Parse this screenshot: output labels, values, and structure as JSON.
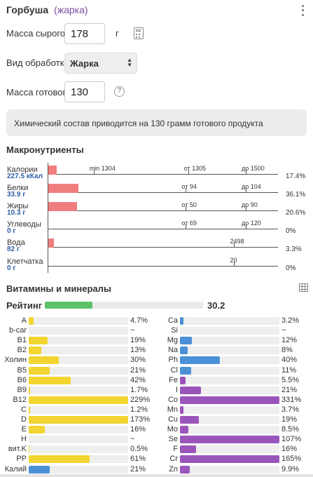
{
  "header": {
    "title": "Горбуша",
    "subtitle": "(жарка)"
  },
  "form": {
    "raw_mass_label": "Масса сырого",
    "raw_mass_value": "178",
    "raw_mass_unit": "г",
    "processing_label": "Вид обработки",
    "processing_value": "Жарка",
    "cooked_mass_label": "Масса готового",
    "cooked_mass_value": "130",
    "help_glyph": "?"
  },
  "info": {
    "text": "Химический состав приводится на 130 грамм готового продукта"
  },
  "macro": {
    "title": "Макронутриенты",
    "rows": [
      {
        "name": "Калории",
        "value": "227.5 кКал",
        "pct": "17.4%",
        "fill_pct": 3.5,
        "markers": [
          {
            "label": "min 1304",
            "pct": 20
          },
          {
            "label": "от 1305",
            "pct": 61
          },
          {
            "label": "до 1500",
            "pct": 86
          }
        ]
      },
      {
        "name": "Белки",
        "value": "33.9 г",
        "pct": "36.1%",
        "fill_pct": 13,
        "markers": [
          {
            "label": "от 94",
            "pct": 60
          },
          {
            "label": "до 104",
            "pct": 86
          }
        ]
      },
      {
        "name": "Жиры",
        "value": "10.3 г",
        "pct": "20.6%",
        "fill_pct": 12.5,
        "markers": [
          {
            "label": "от 50",
            "pct": 60
          },
          {
            "label": "до 90",
            "pct": 86
          }
        ]
      },
      {
        "name": "Углеводы",
        "value": "0 г",
        "pct": "0%",
        "fill_pct": 0,
        "markers": [
          {
            "label": "от 69",
            "pct": 60
          },
          {
            "label": "до 120",
            "pct": 86
          }
        ]
      },
      {
        "name": "Вода",
        "value": "82 г",
        "pct": "3.3%",
        "fill_pct": 2.5,
        "markers": [
          {
            "label": "2498",
            "pct": 81
          }
        ]
      },
      {
        "name": "Клетчатка",
        "value": "0 г",
        "pct": "0%",
        "fill_pct": 0,
        "markers": [
          {
            "label": "20",
            "pct": 81
          }
        ]
      }
    ]
  },
  "vitamins": {
    "title": "Витамины и минералы",
    "rating_label": "Рейтинг",
    "rating_value": "30.2",
    "rating_fill": 30.2,
    "colors": {
      "yellow": "#f2d530",
      "blue": "#4a90d6",
      "purple": "#9a55bb",
      "green": "#5cc26a"
    },
    "left": [
      {
        "name": "A",
        "value": "4.7%",
        "fill": 4.7,
        "color": "yellow"
      },
      {
        "name": "b-car",
        "value": "~",
        "fill": 0,
        "color": "yellow"
      },
      {
        "name": "B1",
        "value": "19%",
        "fill": 19,
        "color": "yellow"
      },
      {
        "name": "B2",
        "value": "13%",
        "fill": 13,
        "color": "yellow"
      },
      {
        "name": "Холин",
        "value": "30%",
        "fill": 30,
        "color": "yellow"
      },
      {
        "name": "B5",
        "value": "21%",
        "fill": 21,
        "color": "yellow"
      },
      {
        "name": "B6",
        "value": "42%",
        "fill": 42,
        "color": "yellow"
      },
      {
        "name": "B9",
        "value": "1.7%",
        "fill": 1.7,
        "color": "yellow"
      },
      {
        "name": "B12",
        "value": "229%",
        "fill": 100,
        "color": "yellow"
      },
      {
        "name": "C",
        "value": "1.2%",
        "fill": 1.2,
        "color": "yellow"
      },
      {
        "name": "D",
        "value": "173%",
        "fill": 100,
        "color": "yellow"
      },
      {
        "name": "E",
        "value": "16%",
        "fill": 16,
        "color": "yellow"
      },
      {
        "name": "H",
        "value": "~",
        "fill": 0,
        "color": "yellow"
      },
      {
        "name": "вит.K",
        "value": "0.5%",
        "fill": 0.5,
        "color": "yellow"
      },
      {
        "name": "PP",
        "value": "61%",
        "fill": 61,
        "color": "yellow"
      },
      {
        "name": "Калий",
        "value": "21%",
        "fill": 21,
        "color": "blue"
      }
    ],
    "right": [
      {
        "name": "Ca",
        "value": "3.2%",
        "fill": 3.2,
        "color": "blue"
      },
      {
        "name": "Si",
        "value": "~",
        "fill": 0,
        "color": "blue"
      },
      {
        "name": "Mg",
        "value": "12%",
        "fill": 12,
        "color": "blue"
      },
      {
        "name": "Na",
        "value": "8%",
        "fill": 8,
        "color": "blue"
      },
      {
        "name": "Ph",
        "value": "40%",
        "fill": 40,
        "color": "blue"
      },
      {
        "name": "Cl",
        "value": "11%",
        "fill": 11,
        "color": "blue"
      },
      {
        "name": "Fe",
        "value": "5.5%",
        "fill": 5.5,
        "color": "purple"
      },
      {
        "name": "I",
        "value": "21%",
        "fill": 21,
        "color": "purple"
      },
      {
        "name": "Co",
        "value": "331%",
        "fill": 100,
        "color": "purple"
      },
      {
        "name": "Mn",
        "value": "3.7%",
        "fill": 3.7,
        "color": "purple"
      },
      {
        "name": "Cu",
        "value": "19%",
        "fill": 19,
        "color": "purple"
      },
      {
        "name": "Mo",
        "value": "8.5%",
        "fill": 8.5,
        "color": "purple"
      },
      {
        "name": "Se",
        "value": "107%",
        "fill": 100,
        "color": "purple"
      },
      {
        "name": "F",
        "value": "16%",
        "fill": 16,
        "color": "purple"
      },
      {
        "name": "Cr",
        "value": "165%",
        "fill": 100,
        "color": "purple"
      },
      {
        "name": "Zn",
        "value": "9.9%",
        "fill": 9.9,
        "color": "purple"
      }
    ]
  }
}
